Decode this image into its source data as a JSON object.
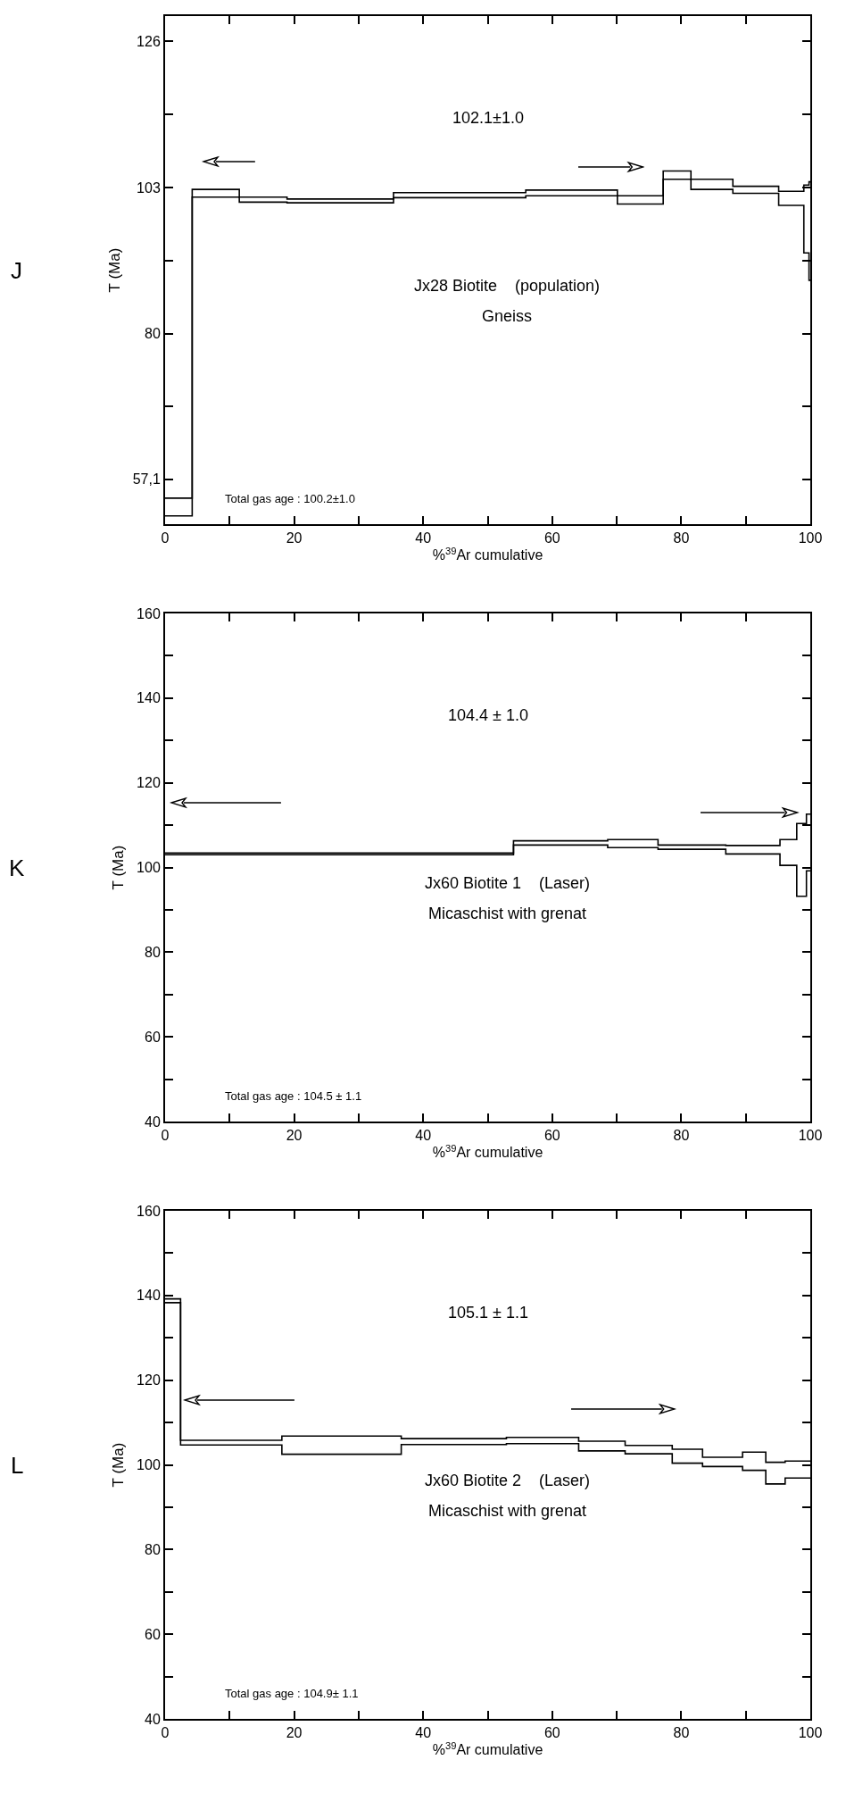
{
  "chart_data": [
    {
      "type": "step",
      "xlabel": "%$^{39}$Ar cumulative",
      "ylabel": "T (Ma)",
      "xlim": [
        0,
        100
      ],
      "ylim": [
        50,
        130
      ],
      "xticks": [
        0,
        {
          "value": 10,
          "label": null
        },
        20,
        {
          "value": 30,
          "label": null
        },
        40,
        {
          "value": 50,
          "label": null
        },
        60,
        {
          "value": 70,
          "label": null
        },
        80,
        {
          "value": 90,
          "label": null
        },
        100
      ],
      "yticks": [
        {
          "value": 57.1,
          "label": "57,1"
        },
        {
          "value": 68.55,
          "label": null
        },
        80,
        {
          "value": 91.5,
          "label": null
        },
        103,
        {
          "value": 114.5,
          "label": null
        },
        126
      ],
      "annotations": [
        "J",
        "102.1±1.0",
        "Jx28 Biotite    (population)",
        "Gneiss",
        "Total gas age : 100.2±1.0"
      ],
      "x": [
        0,
        4.2,
        11.5,
        18.9,
        35.4,
        55.9,
        70.1,
        77.2,
        81.5,
        88,
        95.1,
        99,
        99.8,
        100
      ],
      "series": [
        {
          "color": "#000000",
          "values": [
            51.3,
            101.5,
            100.7,
            100.6,
            101.4,
            101.7,
            100.4,
            104.3,
            102.7,
            102.1,
            100.2,
            92.7,
            88.4,
            88.4
          ]
        },
        {
          "color": "#000000",
          "values": [
            54.1,
            102.7,
            101.5,
            101.2,
            102.2,
            102.6,
            101.7,
            105.6,
            104.3,
            103.2,
            102.4,
            103.4,
            103.9,
            103.9
          ]
        }
      ]
    },
    {
      "type": "step",
      "xlabel": "%$^{39}$Ar cumulative",
      "ylabel": "T (Ma)",
      "xlim": [
        0,
        100
      ],
      "ylim": [
        40,
        160
      ],
      "xticks": [
        0,
        {
          "value": 10,
          "label": null
        },
        20,
        {
          "value": 30,
          "label": null
        },
        40,
        {
          "value": 50,
          "label": null
        },
        60,
        {
          "value": 70,
          "label": null
        },
        80,
        {
          "value": 90,
          "label": null
        },
        100
      ],
      "yticks": [
        40,
        {
          "value": 50,
          "label": null
        },
        60,
        {
          "value": 70,
          "label": null
        },
        80,
        {
          "value": 90,
          "label": null
        },
        100,
        {
          "value": 110,
          "label": null
        },
        120,
        {
          "value": 130,
          "label": null
        },
        140,
        {
          "value": 150,
          "label": null
        },
        160
      ],
      "annotations": [
        "K",
        "104.4 ± 1.0",
        "Jx60 Biotite 1    (Laser)",
        "Micaschist with grenat",
        "Total gas age : 104.5 ± 1.1"
      ],
      "x": [
        0,
        54,
        68.6,
        76.4,
        86.9,
        95.3,
        97.9,
        99.4,
        100
      ],
      "series": [
        {
          "color": "#000000",
          "values": [
            103.0,
            105.3,
            104.7,
            104.3,
            103.2,
            100.5,
            93.2,
            99.2,
            99.2
          ]
        },
        {
          "color": "#000000",
          "values": [
            103.4,
            106.3,
            106.6,
            105.3,
            105.2,
            106.6,
            110.4,
            112.6,
            112.6
          ]
        }
      ]
    },
    {
      "type": "step",
      "xlabel": "%$^{39}$Ar cumulative",
      "ylabel": "T (Ma)",
      "xlim": [
        0,
        100
      ],
      "ylim": [
        40,
        160
      ],
      "xticks": [
        0,
        {
          "value": 10,
          "label": null
        },
        20,
        {
          "value": 30,
          "label": null
        },
        40,
        {
          "value": 50,
          "label": null
        },
        60,
        {
          "value": 70,
          "label": null
        },
        80,
        {
          "value": 90,
          "label": null
        },
        100
      ],
      "yticks": [
        40,
        {
          "value": 50,
          "label": null
        },
        60,
        {
          "value": 70,
          "label": null
        },
        80,
        {
          "value": 90,
          "label": null
        },
        100,
        {
          "value": 110,
          "label": null
        },
        120,
        {
          "value": 130,
          "label": null
        },
        140,
        {
          "value": 150,
          "label": null
        },
        160
      ],
      "annotations": [
        "L",
        "105.1 ± 1.1",
        "Jx60 Biotite 2    (Laser)",
        "Micaschist with grenat",
        "Total gas age : 104.9± 1.1"
      ],
      "x": [
        0,
        2.4,
        18.1,
        36.6,
        52.9,
        64.1,
        71.3,
        78.6,
        83.3,
        89.5,
        93.1,
        96.1,
        100
      ],
      "series": [
        {
          "color": "#000000",
          "values": [
            138.3,
            104.7,
            102.5,
            104.8,
            105.0,
            103.3,
            102.6,
            100.4,
            99.6,
            98.7,
            95.5,
            96.9,
            96.9
          ]
        },
        {
          "color": "#000000",
          "values": [
            139.2,
            105.8,
            106.8,
            106.2,
            106.5,
            105.6,
            104.6,
            103.7,
            101.8,
            103.0,
            100.6,
            100.9,
            100.9
          ]
        }
      ]
    }
  ]
}
